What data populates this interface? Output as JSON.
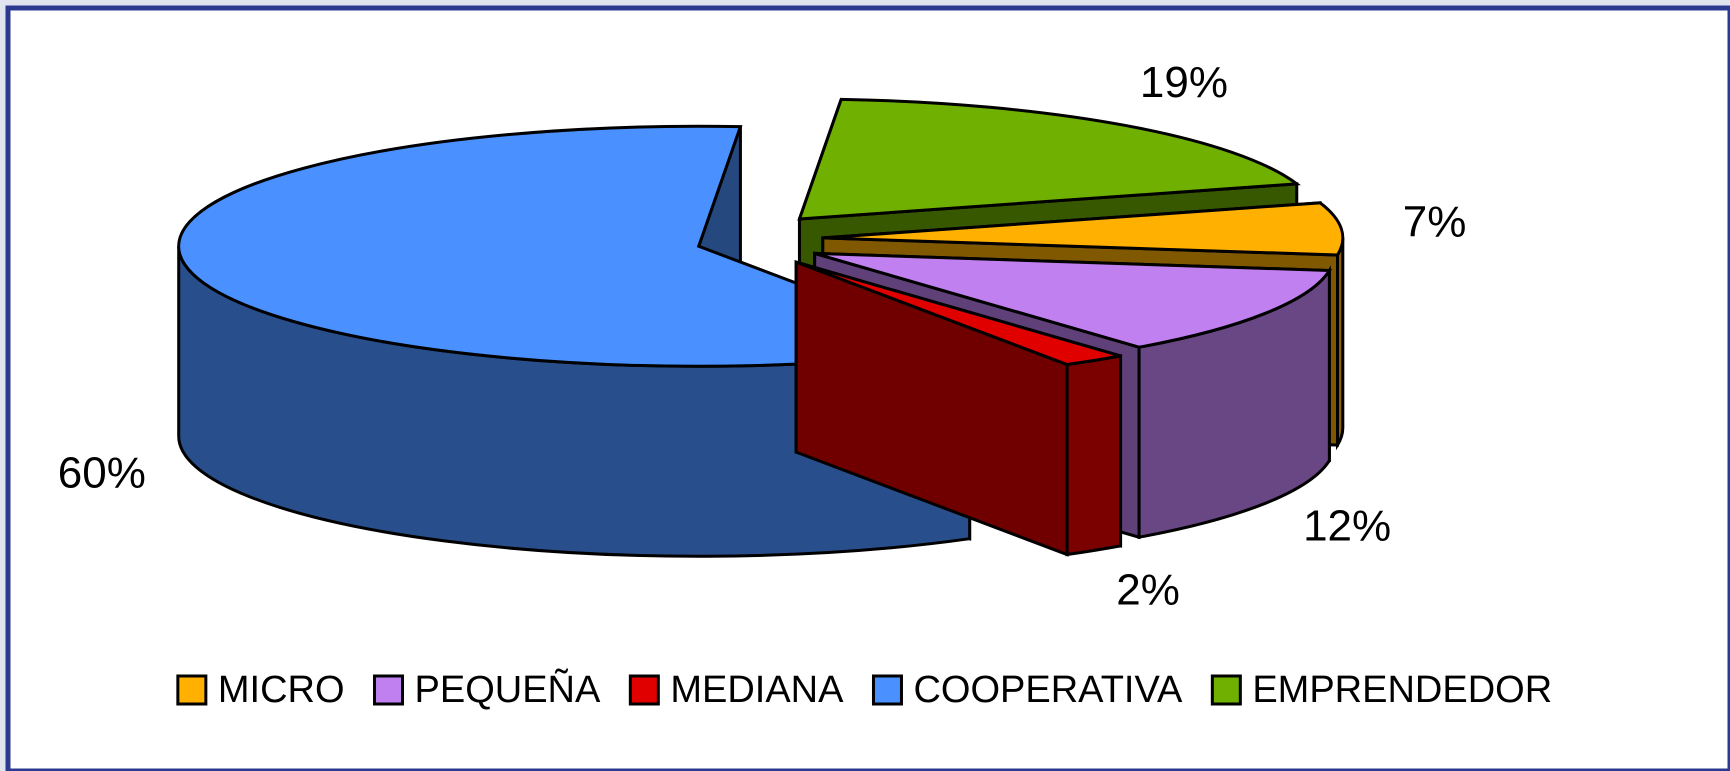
{
  "chart_data": {
    "type": "pie3d",
    "categories": [
      "MICRO",
      "PEQUEÑA",
      "MEDIANA",
      "COOPERATIVA",
      "EMPRENDEDOR"
    ],
    "values": [
      7,
      12,
      2,
      60,
      19
    ],
    "value_labels": [
      "7%",
      "12%",
      "2%",
      "60%",
      "19%"
    ],
    "colors": [
      "#ffb000",
      "#c080f0",
      "#e00000",
      "#4a90ff",
      "#70b000"
    ],
    "legend": "bottom"
  }
}
